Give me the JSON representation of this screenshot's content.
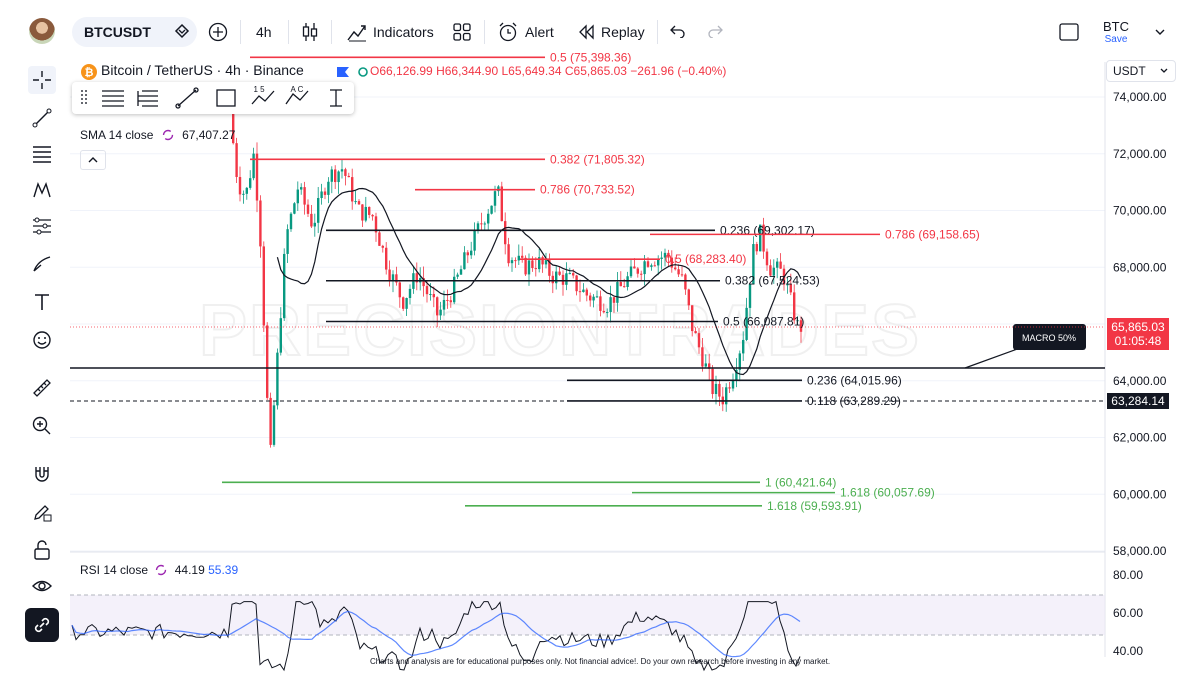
{
  "toolbar": {
    "symbol": "BTCUSDT",
    "interval": "4h",
    "indicators_label": "Indicators",
    "alert_label": "Alert",
    "replay_label": "Replay",
    "layout_name": "BTC",
    "save_label": "Save"
  },
  "legend": {
    "title": "Bitcoin / TetherUS · 4h · Binance",
    "open": "O66,126.99",
    "high": "H66,344.90",
    "low": "L65,649.34",
    "close": "C65,865.03",
    "change": "−261.96 (−0.40%)",
    "sma_name": "SMA 14 close",
    "sma_value": "67,407.27",
    "rsi_name": "RSI 14 close",
    "rsi_value": "44.19",
    "rsi_ma_value": "55.39"
  },
  "currency": "USDT",
  "price_axis": {
    "ticks": [
      "74,000.00",
      "72,000.00",
      "70,000.00",
      "68,000.00",
      "66,000.00",
      "64,000.00",
      "62,000.00",
      "60,000.00",
      "58,000.00"
    ],
    "current_price": "65,865.03",
    "countdown": "01:05:48",
    "crosshair_price": "63,284.14"
  },
  "rsi_axis": {
    "ticks": [
      "80.00",
      "60.00",
      "40.00"
    ]
  },
  "drawings": {
    "macro_label": "MACRO 50%",
    "watermark": "PRECISIONTRADES",
    "levels": [
      {
        "label": "0.5 (75,398.36)",
        "color": "#f23645",
        "price": 75398.36
      },
      {
        "label": "0.382 (71,805.32)",
        "color": "#f23645",
        "price": 71805.32
      },
      {
        "label": "0.786 (70,733.52)",
        "color": "#f23645",
        "price": 70733.52
      },
      {
        "label": "0.236 (69,302.17)",
        "color": "#131722",
        "price": 69302.17
      },
      {
        "label": "0.786 (69,158.65)",
        "color": "#f23645",
        "price": 69158.65
      },
      {
        "label": "0.5 (68,283.40)",
        "color": "#f23645",
        "price": 68283.4
      },
      {
        "label": "0.382 (67,524.53)",
        "color": "#131722",
        "price": 67524.53
      },
      {
        "label": "0.5 (66,087.81)",
        "color": "#131722",
        "price": 66087.81
      },
      {
        "label": "0.236 (64,015.96)",
        "color": "#131722",
        "price": 64015.96
      },
      {
        "label": "0.118 (63,289.29)",
        "color": "#131722",
        "price": 63289.29
      },
      {
        "label": "1 (60,421.64)",
        "color": "#4caf50",
        "price": 60421.64
      },
      {
        "label": "1.618 (60,057.69)",
        "color": "#4caf50",
        "price": 60057.69
      },
      {
        "label": "1.618 (59,593.91)",
        "color": "#4caf50",
        "price": 59593.91
      }
    ]
  },
  "disclaimer": "Charts and analysis are for educational purposes only. Not financial advice!. Do your own research before investing in any market."
}
